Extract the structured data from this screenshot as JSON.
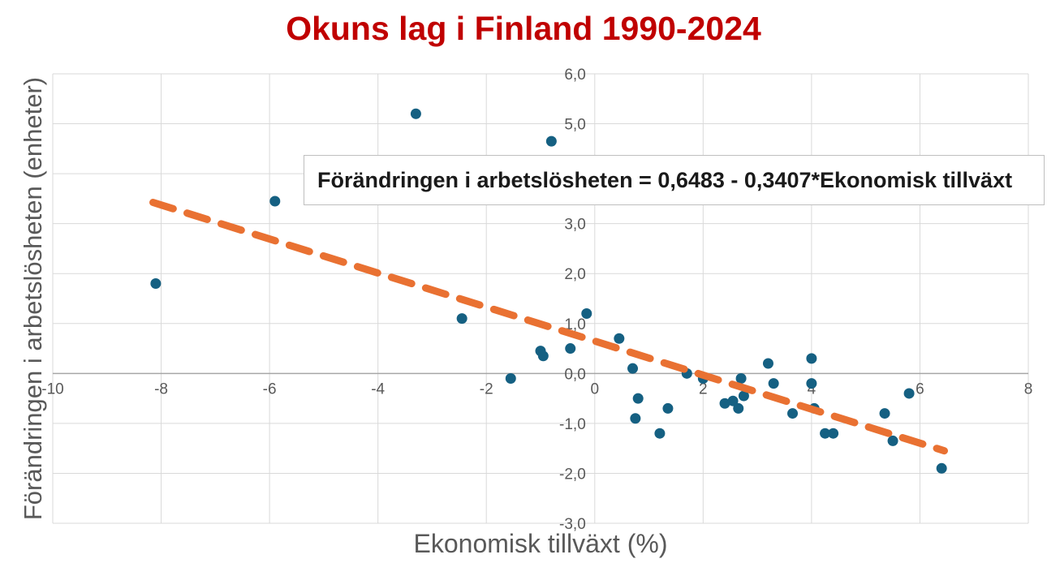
{
  "title": {
    "text": "Okuns lag i Finland 1990-2024",
    "color": "#C00000"
  },
  "equation_box": {
    "text": "Förändringen i arbetslösheten = 0,6483 - 0,3407*Ekonomisk tillväxt"
  },
  "chart_data": {
    "type": "scatter",
    "title": "Okuns lag i Finland 1990-2024",
    "xlabel": "Ekonomisk tillväxt (%)",
    "ylabel": "Förändringen i arbetslösheten (enheter)",
    "xlim": [
      -10,
      8
    ],
    "ylim": [
      -3,
      6
    ],
    "grid": true,
    "x_ticks": [
      {
        "v": -10,
        "label": "-10"
      },
      {
        "v": -8,
        "label": "-8"
      },
      {
        "v": -6,
        "label": "-6"
      },
      {
        "v": -4,
        "label": "-4"
      },
      {
        "v": -2,
        "label": "-2"
      },
      {
        "v": 0,
        "label": "0"
      },
      {
        "v": 2,
        "label": "2"
      },
      {
        "v": 4,
        "label": "4"
      },
      {
        "v": 6,
        "label": "6"
      },
      {
        "v": 8,
        "label": "8"
      }
    ],
    "y_ticks": [
      {
        "v": 6,
        "label": "6,0"
      },
      {
        "v": 5,
        "label": "5,0"
      },
      {
        "v": 4,
        "label": "4,0"
      },
      {
        "v": 3,
        "label": "3,0"
      },
      {
        "v": 2,
        "label": "2,0"
      },
      {
        "v": 1,
        "label": "1,0"
      },
      {
        "v": 0,
        "label": "0,0"
      },
      {
        "v": -1,
        "label": "-1,0"
      },
      {
        "v": -2,
        "label": "-2,0"
      },
      {
        "v": -3,
        "label": "-3,0"
      }
    ],
    "points": [
      [
        -8.1,
        1.8
      ],
      [
        -5.9,
        3.45
      ],
      [
        -3.3,
        5.2
      ],
      [
        -2.45,
        1.1
      ],
      [
        -1.55,
        -0.1
      ],
      [
        -1.0,
        0.45
      ],
      [
        -0.95,
        0.35
      ],
      [
        -0.8,
        4.65
      ],
      [
        -0.45,
        0.5
      ],
      [
        -0.15,
        1.2
      ],
      [
        0.45,
        0.7
      ],
      [
        0.7,
        0.1
      ],
      [
        0.75,
        -0.9
      ],
      [
        0.8,
        -0.5
      ],
      [
        1.2,
        -1.2
      ],
      [
        1.35,
        -0.7
      ],
      [
        1.7,
        0.0
      ],
      [
        2.0,
        -0.1
      ],
      [
        2.4,
        -0.6
      ],
      [
        2.55,
        -0.55
      ],
      [
        2.65,
        -0.7
      ],
      [
        2.7,
        -0.1
      ],
      [
        2.75,
        -0.45
      ],
      [
        3.2,
        0.2
      ],
      [
        3.3,
        -0.2
      ],
      [
        3.65,
        -0.8
      ],
      [
        4.0,
        0.3
      ],
      [
        4.0,
        -0.2
      ],
      [
        4.05,
        -0.7
      ],
      [
        4.25,
        -1.2
      ],
      [
        4.4,
        -1.2
      ],
      [
        5.35,
        -0.8
      ],
      [
        5.5,
        -1.35
      ],
      [
        5.8,
        -0.4
      ],
      [
        6.4,
        -1.9
      ]
    ],
    "trendline": {
      "equation_label": "Förändringen i arbetslösheten = 0,6483 - 0,3407*Ekonomisk tillväxt",
      "intercept": 0.6483,
      "slope": -0.3407,
      "x_start": -8.15,
      "x_end": 6.45
    },
    "colors": {
      "points": "#156082",
      "trendline": "#E97132",
      "gridline": "#D9D9D9",
      "zero_axis": "#A6A6A6",
      "tick_text": "#595959",
      "axis_title_text": "#595959",
      "title_text": "#C00000"
    }
  }
}
